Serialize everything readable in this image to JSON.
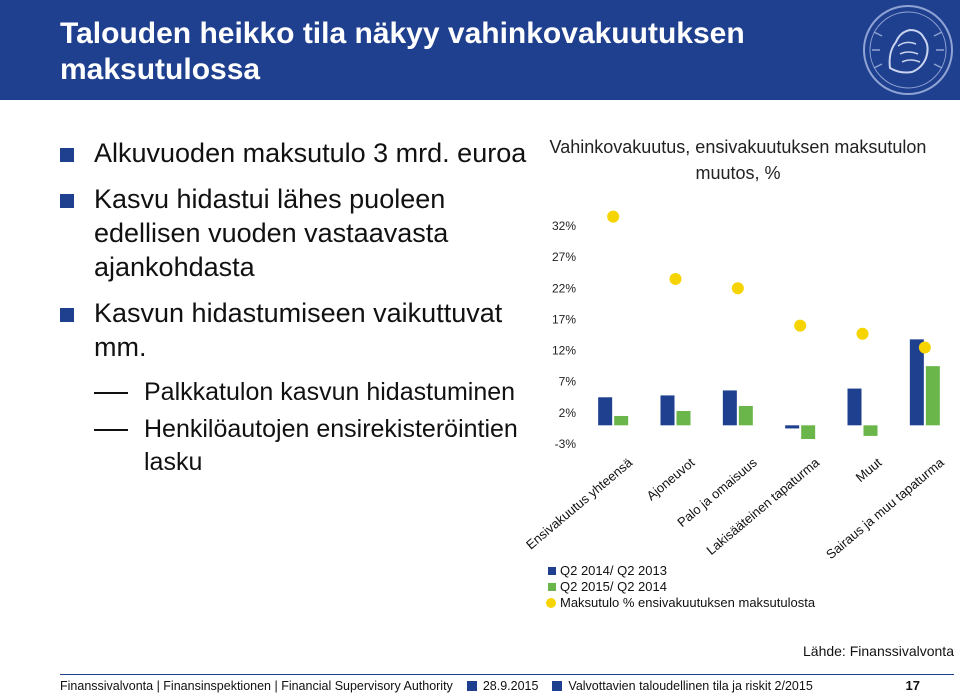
{
  "header": {
    "title": "Talouden heikko tila näkyy vahinkovakuutuksen maksutulossa"
  },
  "bullets": [
    {
      "text": "Alkuvuoden maksutulo 3 mrd. euroa"
    },
    {
      "text": "Kasvu hidastui lähes puoleen edellisen vuoden vastaavasta ajankohdasta"
    },
    {
      "text": "Kasvun hidastumiseen vaikuttuvat mm.",
      "subs": [
        "Palkkatulon kasvun hidastuminen",
        "Henkilöautojen ensirekisteröintien lasku"
      ]
    }
  ],
  "chart_title": "Vahinkovakuutus, ensivakuutuksen maksutulon muutos, %",
  "chart_data": {
    "type": "bar",
    "title": "Vahinkovakuutus, ensivakuutuksen maksutulon muutos, %",
    "categories": [
      "Ensivakuutus yhteensä",
      "Ajoneuvot",
      "Palo ja omaisuus",
      "Lakisääteinen tapaturma",
      "Muut",
      "Sairaus ja muu tapaturma"
    ],
    "yticks": [
      "32%",
      "27%",
      "22%",
      "17%",
      "12%",
      "7%",
      "2%",
      "-3%"
    ],
    "ytick_values": [
      32,
      27,
      22,
      17,
      12,
      7,
      2,
      -3
    ],
    "ylim": [
      -3,
      32
    ],
    "series": [
      {
        "name": "Q2  2014/ Q2 2013",
        "color": "#1f3f8f",
        "values": [
          4.5,
          4.8,
          5.6,
          -0.5,
          5.9,
          13.8
        ]
      },
      {
        "name": "Q2 2015/ Q2 2014",
        "color": "#6ab64a",
        "values": [
          1.5,
          2.3,
          3.1,
          -2.2,
          -1.7,
          9.5
        ]
      }
    ],
    "points": {
      "name": "Maksutulo  % ensivakuutuksen maksutulosta",
      "color": "#f5d400",
      "values": [
        33.5,
        23.5,
        22.0,
        16.0,
        14.7,
        12.5
      ]
    },
    "grid": false,
    "legend_position": "bottom"
  },
  "source": "Lähde: Finanssivalvonta",
  "footer": {
    "org": "Finanssivalvonta | Finansinspektionen | Financial Supervisory Authority",
    "date": "28.9.2015",
    "publication": "Valvottavien taloudellinen tila ja riskit 2/2015",
    "page": "17"
  },
  "colors": {
    "brand": "#1f3f8f",
    "green": "#6ab64a",
    "yellow": "#f5d400"
  },
  "logo_icon": "lion-crest-icon"
}
